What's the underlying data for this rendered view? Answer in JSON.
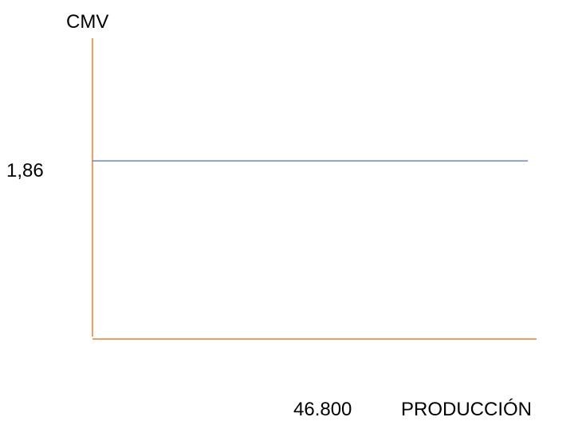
{
  "chart_data": {
    "type": "line",
    "ylabel": "CMV",
    "xlabel": "PRODUCCIÓN",
    "y_tick_labels": [
      "1,86"
    ],
    "x_tick_labels": [
      "46.800"
    ],
    "series": [
      {
        "x": [
          0,
          46800
        ],
        "values": [
          1.86,
          1.86
        ]
      }
    ],
    "grid": false,
    "colors": {
      "axis": "#ED7D31",
      "series": "#4472C4"
    }
  }
}
